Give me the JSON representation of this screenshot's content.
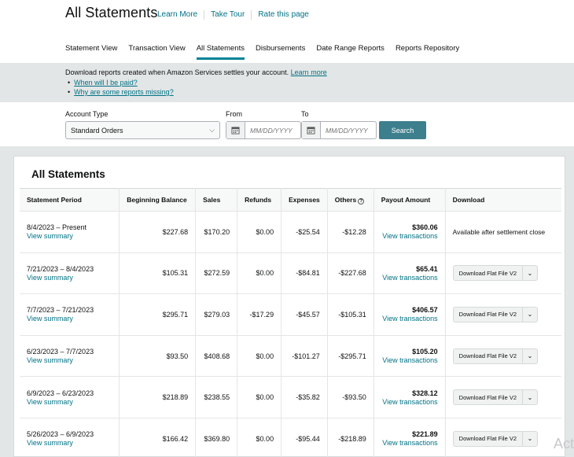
{
  "header": {
    "title": "All Statements",
    "links": [
      "Learn More",
      "Take Tour",
      "Rate this page"
    ]
  },
  "tabs": [
    "Statement View",
    "Transaction View",
    "All Statements",
    "Disbursements",
    "Date Range Reports",
    "Reports Repository"
  ],
  "active_tab": "All Statements",
  "info": {
    "text": "Download reports created when Amazon Services settles your account.",
    "learn_more": "Learn more",
    "bullets": [
      "When will I be paid?",
      "Why are some reports missing?"
    ]
  },
  "filters": {
    "account_type_label": "Account Type",
    "account_type_value": "Standard Orders",
    "from_label": "From",
    "to_label": "To",
    "date_placeholder": "MM/DD/YYYY",
    "search_label": "Search"
  },
  "statements": {
    "title": "All Statements",
    "columns": [
      "Statement Period",
      "Beginning Balance",
      "Sales",
      "Refunds",
      "Expenses",
      "Others",
      "Payout Amount",
      "Download"
    ],
    "view_summary": "View summary",
    "view_transactions": "View transactions",
    "download_label": "Download Flat File V2",
    "rows": [
      {
        "period": "8/4/2023 – Present",
        "beginning": "$227.68",
        "sales": "$170.20",
        "refunds": "$0.00",
        "expenses": "-$25.54",
        "others": "-$12.28",
        "payout": "$360.06",
        "download_text": "Available after settlement close"
      },
      {
        "period": "7/21/2023 – 8/4/2023",
        "beginning": "$105.31",
        "sales": "$272.59",
        "refunds": "$0.00",
        "expenses": "-$84.81",
        "others": "-$227.68",
        "payout": "$65.41"
      },
      {
        "period": "7/7/2023 – 7/21/2023",
        "beginning": "$295.71",
        "sales": "$279.03",
        "refunds": "-$17.29",
        "expenses": "-$45.57",
        "others": "-$105.31",
        "payout": "$406.57"
      },
      {
        "period": "6/23/2023 – 7/7/2023",
        "beginning": "$93.50",
        "sales": "$408.68",
        "refunds": "$0.00",
        "expenses": "-$101.27",
        "others": "-$295.71",
        "payout": "$105.20"
      },
      {
        "period": "6/9/2023 – 6/23/2023",
        "beginning": "$218.89",
        "sales": "$238.55",
        "refunds": "$0.00",
        "expenses": "-$35.82",
        "others": "-$93.50",
        "payout": "$328.12"
      },
      {
        "period": "5/26/2023 – 6/9/2023",
        "beginning": "$166.42",
        "sales": "$369.80",
        "refunds": "$0.00",
        "expenses": "-$95.44",
        "others": "-$218.89",
        "payout": "$221.89"
      }
    ]
  },
  "watermark": "Act"
}
